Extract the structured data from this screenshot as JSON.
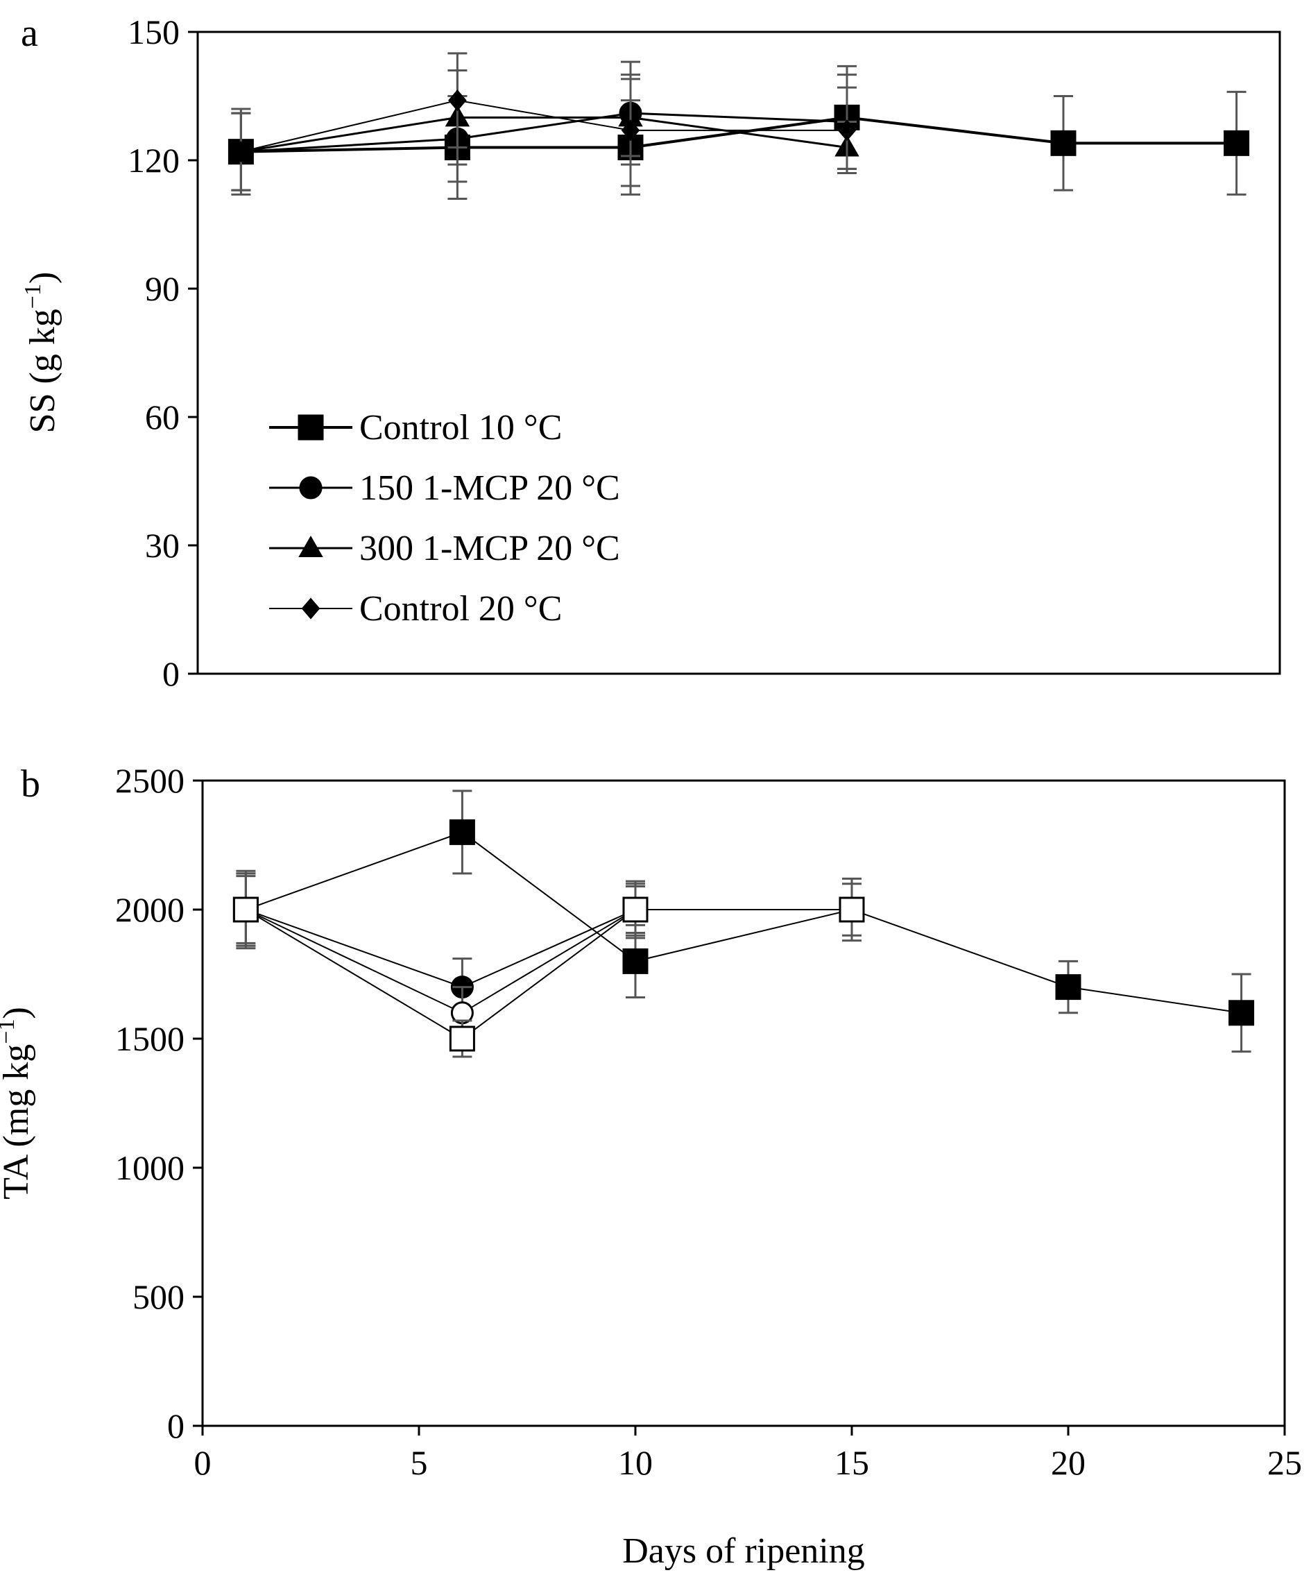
{
  "chart_data": [
    {
      "panel": "a",
      "type": "line",
      "ylabel": "SS (g kg",
      "ylabel_sup": "−1",
      "ylabel_close": ")",
      "xlim": [
        0,
        25
      ],
      "ylim": [
        0,
        150
      ],
      "yticks": [
        0,
        30,
        60,
        90,
        120,
        150
      ],
      "grid": false,
      "legend": "left-center",
      "series": [
        {
          "name": "Control 10 °C",
          "marker": "square",
          "filled": true,
          "x": [
            1,
            6,
            10,
            15,
            20,
            24
          ],
          "y": [
            122,
            123,
            123,
            130,
            124,
            124
          ],
          "err": [
            9,
            12,
            11,
            12,
            11,
            12
          ]
        },
        {
          "name": "150 1-MCP 20 °C",
          "marker": "circle",
          "filled": true,
          "x": [
            1,
            6,
            10,
            15
          ],
          "y": [
            122,
            125,
            131,
            129
          ],
          "err": [
            9,
            10,
            12,
            11
          ]
        },
        {
          "name": "300 1-MCP 20 °C",
          "marker": "triangle",
          "filled": true,
          "x": [
            1,
            6,
            10,
            15
          ],
          "y": [
            122,
            130,
            130,
            123
          ],
          "err": [
            9,
            11,
            9,
            6
          ]
        },
        {
          "name": "Control 20 °C",
          "marker": "diamond",
          "filled": true,
          "x": [
            1,
            6,
            10,
            15
          ],
          "y": [
            122,
            134,
            127,
            127
          ],
          "err": [
            10,
            11,
            13,
            10
          ]
        }
      ]
    },
    {
      "panel": "b",
      "type": "line",
      "xlabel": "Days of ripening",
      "ylabel": "TA (mg kg",
      "ylabel_sup": "−1",
      "ylabel_close": ")",
      "xlim": [
        0,
        25
      ],
      "ylim": [
        0,
        2500
      ],
      "xticks": [
        0,
        5,
        10,
        15,
        20,
        25
      ],
      "yticks": [
        0,
        500,
        1000,
        1500,
        2000,
        2500
      ],
      "grid": false,
      "series": [
        {
          "marker": "square",
          "filled": true,
          "x": [
            1,
            6,
            10,
            15,
            20,
            24
          ],
          "y": [
            2000,
            2300,
            1800,
            2000,
            1700,
            1600
          ],
          "err": [
            150,
            160,
            140,
            120,
            100,
            150
          ]
        },
        {
          "marker": "circle",
          "filled": true,
          "x": [
            1,
            6,
            10
          ],
          "y": [
            2000,
            1700,
            2000
          ],
          "err": [
            140,
            110,
            100
          ]
        },
        {
          "marker": "circle",
          "filled": false,
          "x": [
            1,
            6,
            10
          ],
          "y": [
            2000,
            1600,
            2000
          ],
          "err": [
            130,
            100,
            90
          ]
        },
        {
          "marker": "square",
          "filled": false,
          "x": [
            1,
            6,
            10,
            15
          ],
          "y": [
            2000,
            1500,
            2000,
            2000
          ],
          "err": [
            140,
            70,
            110,
            100
          ]
        }
      ]
    }
  ]
}
